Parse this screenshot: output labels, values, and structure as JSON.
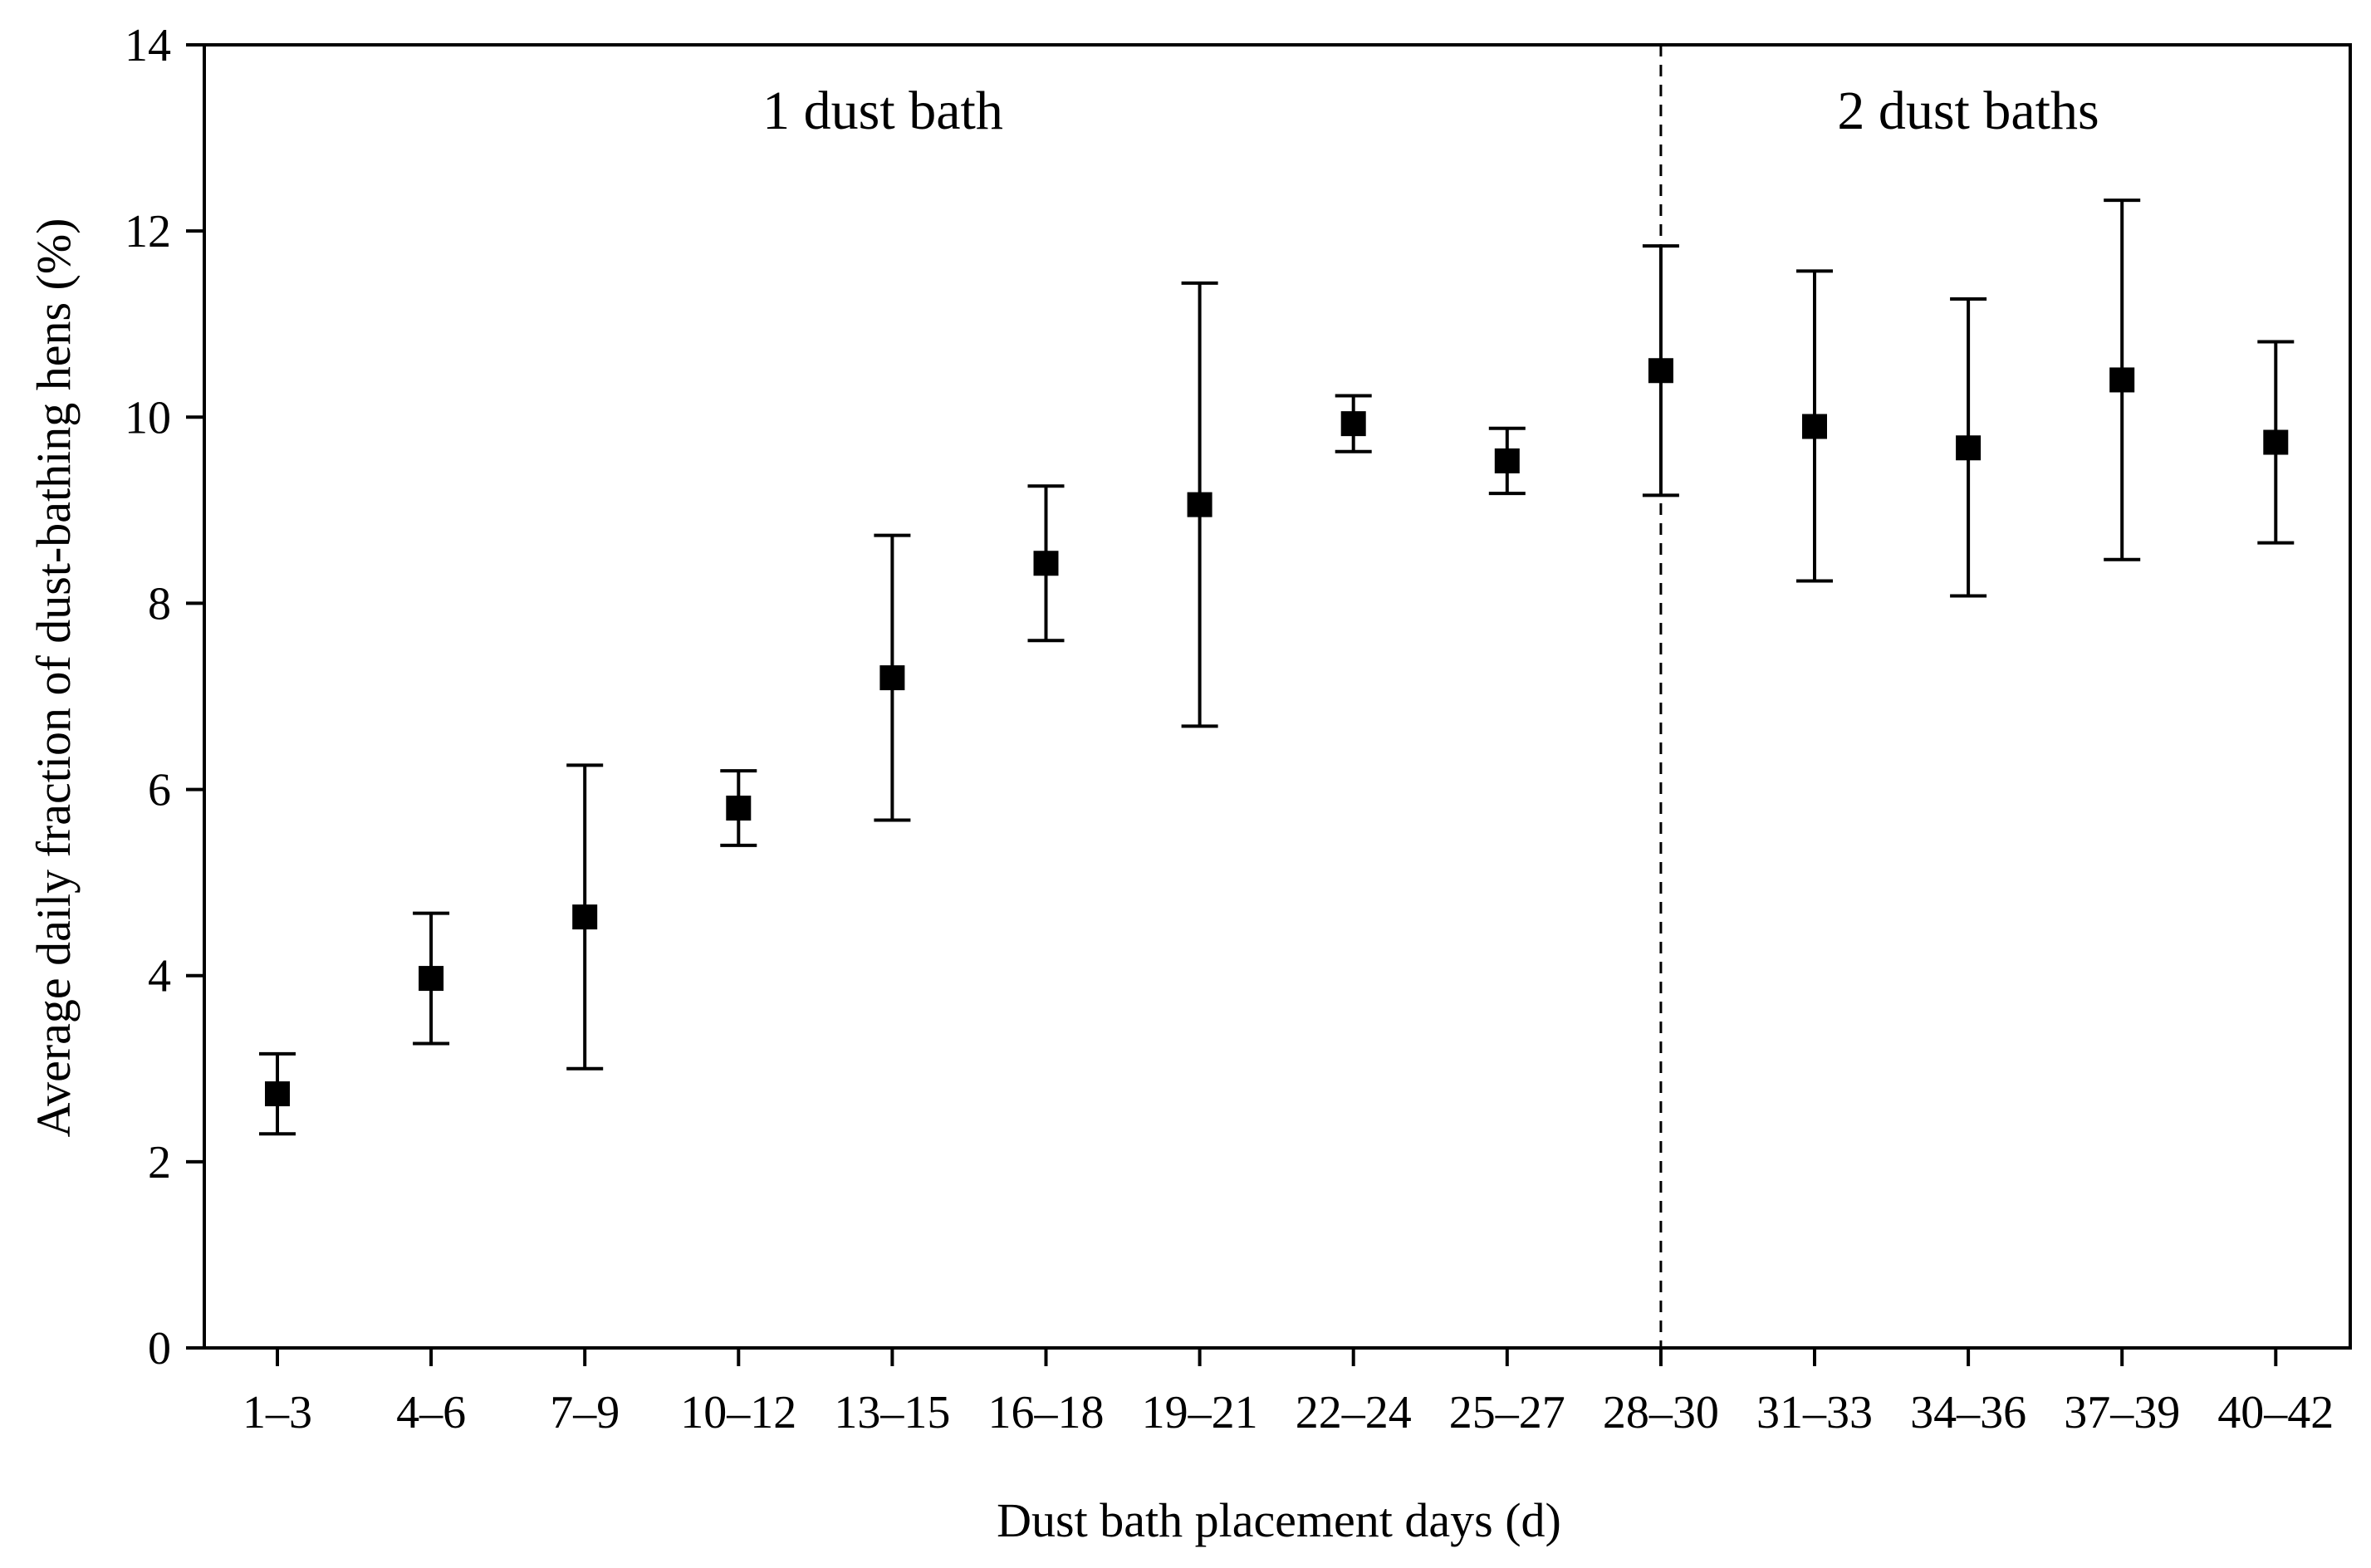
{
  "chart_data": {
    "type": "scatter",
    "title": "",
    "xlabel": "Dust bath placement days (d)",
    "ylabel": "Average daily fraction of dust-bathing hens (%)",
    "ylim": [
      0,
      14
    ],
    "yticks": [
      0,
      2,
      4,
      6,
      8,
      10,
      12,
      14
    ],
    "grid": false,
    "legend": "none",
    "categories": [
      "1–3",
      "4–6",
      "7–9",
      "10–12",
      "13–15",
      "16–18",
      "19–21",
      "22–24",
      "25–27",
      "28–30",
      "31–33",
      "34–36",
      "37–39",
      "40–42"
    ],
    "series": [
      {
        "values": [
          2.73,
          3.97,
          4.63,
          5.8,
          7.2,
          8.43,
          9.06,
          9.93,
          9.53,
          10.5,
          9.9,
          9.67,
          10.4,
          9.73
        ],
        "error_low": [
          2.3,
          3.27,
          3.0,
          5.4,
          5.67,
          7.6,
          6.68,
          9.63,
          9.18,
          9.16,
          8.24,
          8.08,
          8.47,
          8.65
        ],
        "error_high": [
          3.16,
          4.67,
          6.26,
          6.2,
          8.73,
          9.26,
          11.44,
          10.23,
          9.88,
          11.84,
          11.57,
          11.27,
          12.33,
          10.81
        ],
        "marker": "square",
        "color": "#000000"
      }
    ],
    "divider": {
      "between": [
        "28–30"
      ],
      "style": "dashed"
    },
    "annotations": [
      "1 dust bath",
      "2 dust baths"
    ]
  }
}
